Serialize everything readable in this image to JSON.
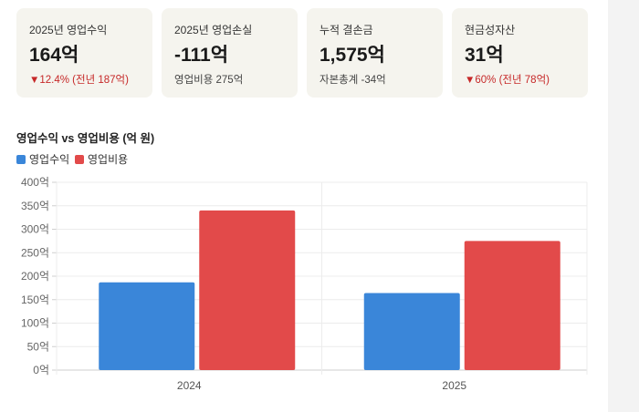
{
  "cards": [
    {
      "label": "2025년 영업수익",
      "value": "164억",
      "sub": "▼12.4% (전년 187억)",
      "sub_negative": true
    },
    {
      "label": "2025년 영업손실",
      "value": "-111억",
      "sub": "영업비용 275억",
      "sub_negative": false
    },
    {
      "label": "누적 결손금",
      "value": "1,575억",
      "sub": "자본총계 -34억",
      "sub_negative": false
    },
    {
      "label": "현금성자산",
      "value": "31억",
      "sub": "▼60% (전년 78억)",
      "sub_negative": true
    }
  ],
  "chart_data": {
    "type": "bar",
    "title": "영업수익 vs 영업비용 (억 원)",
    "categories": [
      "2024",
      "2025"
    ],
    "series": [
      {
        "name": "영업수익",
        "color": "#3a86d9",
        "values": [
          187,
          164
        ]
      },
      {
        "name": "영업비용",
        "color": "#e24a4a",
        "values": [
          340,
          275
        ]
      }
    ],
    "ylim": [
      0,
      400
    ],
    "y_ticks": [
      0,
      50,
      100,
      150,
      200,
      250,
      300,
      350,
      400
    ],
    "y_tick_suffix": "억",
    "grid": true,
    "legend": "top-left"
  }
}
